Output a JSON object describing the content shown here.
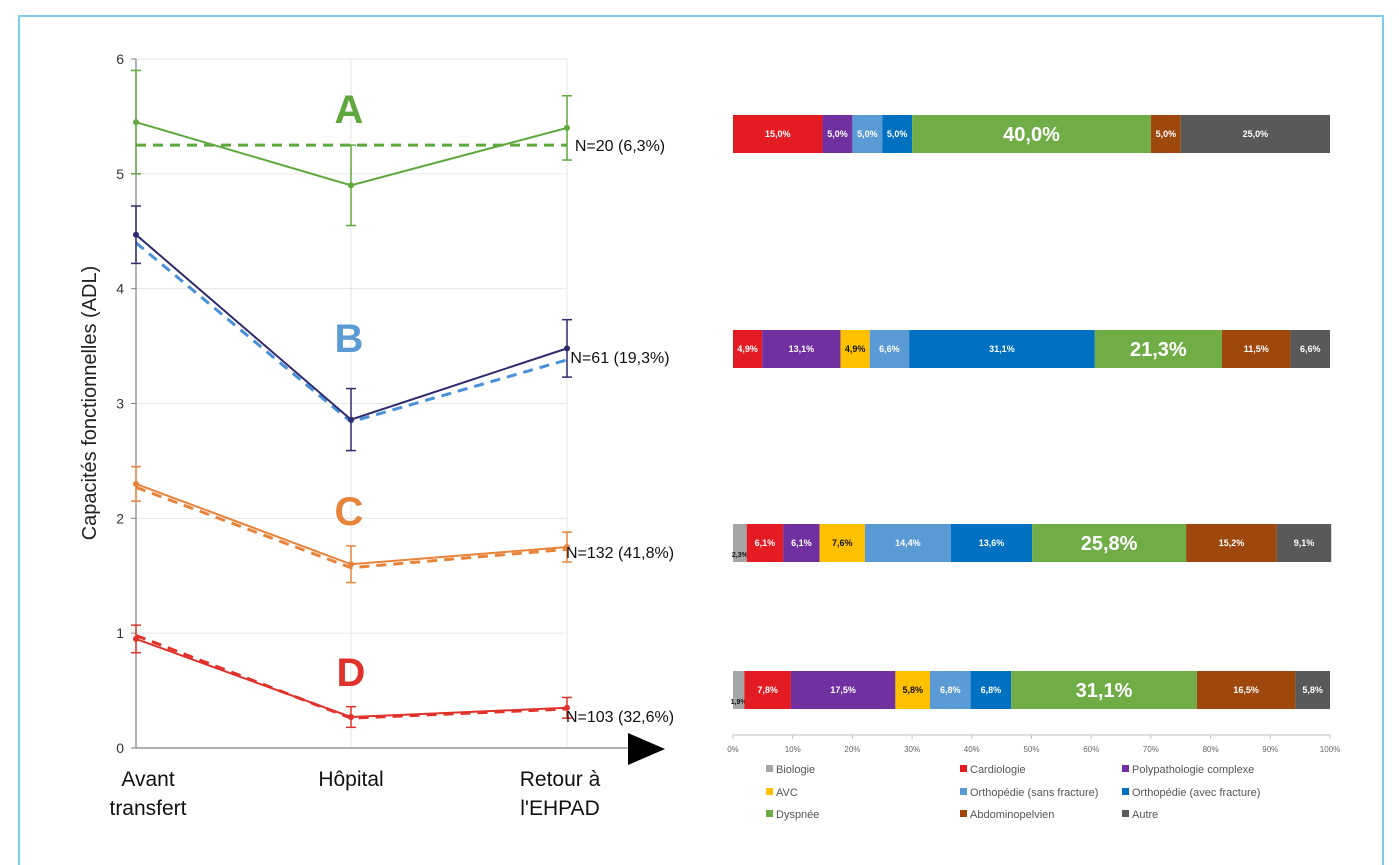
{
  "chart_data": [
    {
      "type": "line",
      "ylabel": "Capacités fonctionnelles (ADL)",
      "ylim": [
        0,
        6
      ],
      "y_ticks": [
        "0",
        "1",
        "2",
        "3",
        "4",
        "5",
        "6"
      ],
      "categories": [
        "Avant\ntransfert",
        "Hôpital",
        "Retour à\nl'EHPAD"
      ],
      "grid": true,
      "series": [
        {
          "name": "A",
          "color": "#5fa83e",
          "values": [
            5.45,
            4.9,
            5.4
          ],
          "err": [
            0.45,
            0.35,
            0.28
          ],
          "dashed_level": 5.25,
          "n_label": "N=20 (6,3%)"
        },
        {
          "name": "B",
          "color": "#2f2b6e",
          "dash_color": "#4a90d9",
          "label_color": "#5b9bd5",
          "values": [
            4.47,
            2.86,
            3.48
          ],
          "dashed_values": [
            4.4,
            2.84,
            3.38
          ],
          "err": [
            0.25,
            0.27,
            0.25
          ],
          "n_label": "N=61 (19,3%)"
        },
        {
          "name": "C",
          "color": "#e8833a",
          "values": [
            2.3,
            1.6,
            1.75
          ],
          "dashed_values": [
            2.27,
            1.57,
            1.73
          ],
          "err": [
            0.15,
            0.16,
            0.13
          ],
          "n_label": "N=132 (41,8%)"
        },
        {
          "name": "D",
          "color": "#e0322b",
          "values": [
            0.95,
            0.27,
            0.35
          ],
          "dashed_values": [
            0.98,
            0.26,
            0.34
          ],
          "err": [
            0.12,
            0.09,
            0.09
          ],
          "n_label": "N=103 (32,6%)"
        }
      ]
    },
    {
      "type": "bar",
      "stacked": true,
      "orientation": "horizontal",
      "xlim": [
        0,
        100
      ],
      "x_ticks": [
        "0%",
        "10%",
        "20%",
        "30%",
        "40%",
        "50%",
        "60%",
        "70%",
        "80%",
        "90%",
        "100%"
      ],
      "categories": [
        "Biologie",
        "Cardiologie",
        "Polypathologie complexe",
        "AVC",
        "Orthopédie (sans fracture)",
        "Orthopédie (avec fracture)",
        "Dyspnée",
        "Abdominopelvien",
        "Autre"
      ],
      "colors": [
        "#a6a6a6",
        "#e31b23",
        "#7030a0",
        "#ffc000",
        "#5b9bd5",
        "#0070c0",
        "#70ad47",
        "#9e480e",
        "#595959"
      ],
      "series": [
        {
          "group": "A",
          "values": [
            0,
            15.0,
            5.0,
            0,
            5.0,
            5.0,
            40.0,
            5.0,
            25.0
          ],
          "labels": [
            "",
            "15,0%",
            "5,0%",
            "",
            "5,0%",
            "5,0%",
            "40,0%",
            "5,0%",
            "25,0%"
          ]
        },
        {
          "group": "B",
          "values": [
            0,
            4.9,
            13.1,
            4.9,
            6.6,
            31.1,
            21.3,
            11.5,
            6.6
          ],
          "labels": [
            "",
            "4,9%",
            "13,1%",
            "4,9%",
            "6,6%",
            "31,1%",
            "21,3%",
            "11,5%",
            "6,6%"
          ]
        },
        {
          "group": "C",
          "values": [
            2.3,
            6.1,
            6.1,
            7.6,
            14.4,
            13.6,
            25.8,
            15.2,
            9.1
          ],
          "labels": [
            "2,3%",
            "6,1%",
            "6,1%",
            "7,6%",
            "14,4%",
            "13,6%",
            "25,8%",
            "15,2%",
            "9,1%"
          ]
        },
        {
          "group": "D",
          "values": [
            1.9,
            7.8,
            17.5,
            5.8,
            6.8,
            6.8,
            31.1,
            16.5,
            5.8
          ],
          "labels": [
            "1,9%",
            "7,8%",
            "17,5%",
            "5,8%",
            "6,8%",
            "6,8%",
            "31,1%",
            "16,5%",
            "5,8%"
          ]
        }
      ],
      "legend_position": "bottom"
    }
  ]
}
